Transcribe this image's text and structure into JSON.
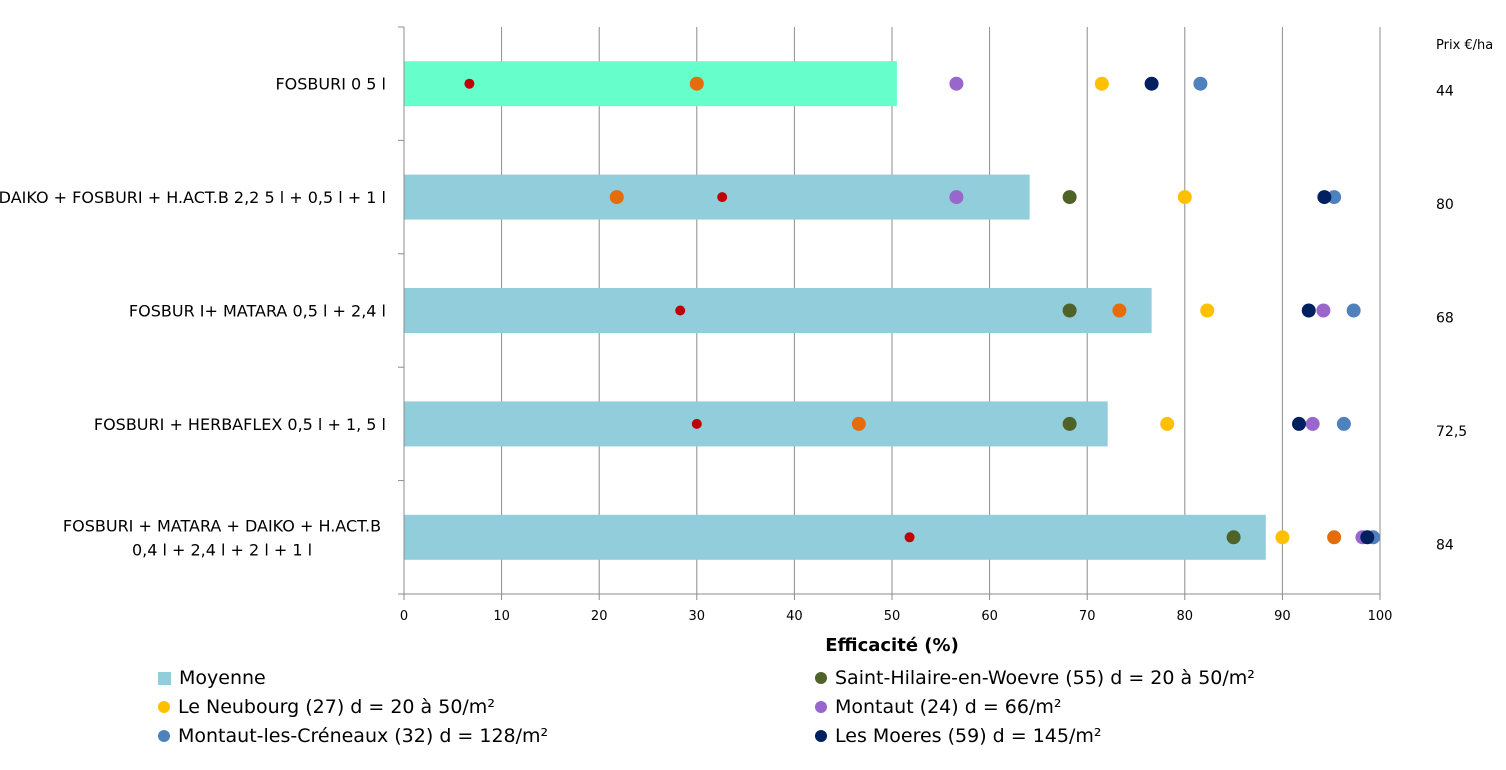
{
  "chart_data": {
    "type": "bar",
    "orientation": "horizontal",
    "xlabel": "Efficacité (%)",
    "xlim": [
      0,
      100
    ],
    "x_ticks": [
      "0",
      "10",
      "20",
      "30",
      "40",
      "50",
      "60",
      "70",
      "80",
      "90",
      "100"
    ],
    "grid": "vertical",
    "legend_position": "bottom",
    "price_header": "Prix €/ha",
    "categories": [
      {
        "label": [
          "FOSBURI 0 5 l"
        ],
        "price": "44",
        "mean": 50.5,
        "bar_color": "#66ffcc"
      },
      {
        "label": [
          "DAIKO + FOSBURI + H.ACT.B 2,2 5 l + 0,5 l + 1 l"
        ],
        "price": "80",
        "mean": 64.1,
        "bar_color": "#92cddc"
      },
      {
        "label": [
          "FOSBUR I+ MATARA 0,5 l + 2,4 l"
        ],
        "price": "68",
        "mean": 76.6,
        "bar_color": "#92cddc"
      },
      {
        "label": [
          "FOSBURI + HERBAFLEX 0,5 l + 1, 5 l"
        ],
        "price": "72,5",
        "mean": 72.1,
        "bar_color": "#92cddc"
      },
      {
        "label": [
          "FOSBURI + MATARA + DAIKO + H.ACT.B",
          "0,4 l + 2,4 l + 2 l + 1 l"
        ],
        "price": "84",
        "mean": 88.3,
        "bar_color": "#92cddc"
      }
    ],
    "legend": [
      {
        "kind": "bar",
        "name": "Moyenne",
        "color": "#92cddc"
      },
      {
        "kind": "dot",
        "name": "Saint-Hilaire-en-Woevre (55) d = 20 à 50/m²",
        "color": "#4f6228"
      },
      {
        "kind": "dot",
        "name": "Le Neubourg (27) d = 20 à 50/m²",
        "color": "#ffc000"
      },
      {
        "kind": "dot",
        "name": "Montaut (24) d = 66/m²",
        "color": "#9966cc"
      },
      {
        "kind": "dot",
        "name": "Montaut-les-Créneaux (32) d = 128/m²",
        "color": "#4f81bd"
      },
      {
        "kind": "dot",
        "name": "Les Moeres (59) d = 145/m²",
        "color": "#002060"
      }
    ],
    "series": [
      {
        "color": "#c00000",
        "size": "small",
        "values": [
          6.7,
          32.6,
          28.3,
          30.0,
          51.8
        ]
      },
      {
        "color": "#e46c0a",
        "size": "large",
        "values": [
          30.0,
          21.8,
          73.3,
          46.6,
          95.3
        ]
      },
      {
        "name": "Saint-Hilaire-en-Woevre (55) d = 20 à 50/m²",
        "color": "#4f6228",
        "size": "large",
        "values": [
          null,
          68.2,
          68.2,
          68.2,
          85.0
        ]
      },
      {
        "name": "Le Neubourg (27) d = 20 à 50/m²",
        "color": "#ffc000",
        "size": "large",
        "values": [
          71.5,
          80.0,
          82.3,
          78.2,
          90.0
        ]
      },
      {
        "name": "Montaut (24) d = 66/m²",
        "color": "#9966cc",
        "size": "large",
        "values": [
          56.6,
          56.6,
          94.2,
          93.1,
          98.2
        ]
      },
      {
        "name": "Montaut-les-Créneaux (32) d = 128/m²",
        "color": "#4f81bd",
        "size": "large",
        "values": [
          81.6,
          95.3,
          97.3,
          96.3,
          99.3
        ]
      },
      {
        "name": "Les Moeres (59) d = 145/m²",
        "color": "#002060",
        "size": "large",
        "values": [
          76.6,
          94.3,
          92.7,
          91.7,
          98.7
        ]
      }
    ]
  }
}
